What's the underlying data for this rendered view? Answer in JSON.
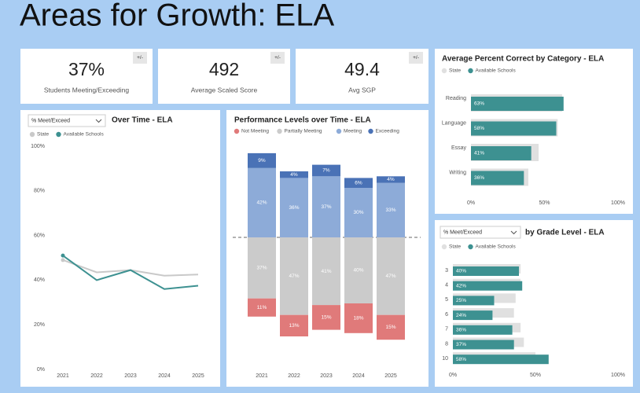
{
  "title": "Areas for Growth: ELA",
  "kpis": [
    {
      "value": "37%",
      "label": "Students Meeting/Exceeding",
      "button": "+/-"
    },
    {
      "value": "492",
      "label": "Average Scaled Score",
      "button": "+/-"
    },
    {
      "value": "49.4",
      "label": "Avg SGP",
      "button": "+/-"
    }
  ],
  "chart_data": [
    {
      "type": "line",
      "title": "Over Time - ELA",
      "dropdown": "% Meet/Exceed",
      "categories": [
        "2021",
        "2022",
        "2023",
        "2024",
        "2025"
      ],
      "series": [
        {
          "name": "State",
          "color": "#c9c9c9",
          "values": [
            49,
            43.5,
            44.5,
            42,
            42.5
          ]
        },
        {
          "name": "Available Schools",
          "color": "#3d9191",
          "values": [
            51,
            40,
            44.5,
            36,
            37.5
          ]
        }
      ],
      "ylim": [
        0,
        100
      ],
      "yticks": [
        {
          "value": 0,
          "label": "0%"
        },
        {
          "value": 20,
          "label": "20%"
        },
        {
          "value": 40,
          "label": "40%"
        },
        {
          "value": 60,
          "label": "60%"
        },
        {
          "value": 80,
          "label": "80%"
        },
        {
          "value": 100,
          "label": "100%"
        }
      ]
    },
    {
      "type": "diverging-bar",
      "title": "Performance Levels over Time - ELA",
      "categories": [
        "2021",
        "2022",
        "2023",
        "2024",
        "2025"
      ],
      "series": [
        {
          "name": "Not Meeting",
          "color": "#e07a7a",
          "values": [
            11,
            13,
            15,
            18,
            15
          ],
          "value_labels": [
            "11%",
            "13%",
            "15%",
            "18%",
            "15%"
          ]
        },
        {
          "name": "Partially Meeting",
          "color": "#cbcbcb",
          "values": [
            37,
            47,
            41,
            40,
            47
          ],
          "value_labels": [
            "37%",
            "47%",
            "41%",
            "40%",
            "47%"
          ]
        },
        {
          "name": "Meeting",
          "color": "#8dabd8",
          "values": [
            42,
            36,
            37,
            30,
            33
          ],
          "value_labels": [
            "42%",
            "36%",
            "37%",
            "30%",
            "33%"
          ]
        },
        {
          "name": "Exceeding",
          "color": "#4a72b6",
          "values": [
            9,
            4,
            7,
            6,
            4
          ],
          "value_labels": [
            "9%",
            "4%",
            "7%",
            "6%",
            "4%"
          ]
        }
      ]
    },
    {
      "type": "hbar",
      "title": "Average Percent Correct by Category - ELA",
      "categories": [
        "Reading",
        "Language",
        "Essay",
        "Writing"
      ],
      "series": [
        {
          "name": "State",
          "color": "#e0e0e0",
          "values": [
            62,
            59,
            46,
            39
          ]
        },
        {
          "name": "Available Schools",
          "color": "#3d9191",
          "values": [
            63,
            58,
            41,
            36
          ],
          "value_labels": [
            "63%",
            "58%",
            "41%",
            "36%"
          ]
        }
      ],
      "xlim": [
        0,
        100
      ],
      "xticks": [
        {
          "value": 0,
          "label": "0%"
        },
        {
          "value": 50,
          "label": "50%"
        },
        {
          "value": 100,
          "label": "100%"
        }
      ]
    },
    {
      "type": "hbar",
      "title": "by Grade Level - ELA",
      "dropdown": "% Meet/Exceed",
      "categories": [
        "3",
        "4",
        "5",
        "6",
        "7",
        "8",
        "10"
      ],
      "series": [
        {
          "name": "State",
          "color": "#e0e0e0",
          "values": [
            41,
            41,
            38,
            37,
            41,
            43,
            50
          ]
        },
        {
          "name": "Available Schools",
          "color": "#3d9191",
          "values": [
            40,
            42,
            25,
            24,
            36,
            37,
            58
          ],
          "value_labels": [
            "40%",
            "42%",
            "25%",
            "24%",
            "36%",
            "37%",
            "58%"
          ]
        }
      ],
      "xlim": [
        0,
        100
      ],
      "xticks": [
        {
          "value": 0,
          "label": "0%"
        },
        {
          "value": 50,
          "label": "50%"
        },
        {
          "value": 100,
          "label": "100%"
        }
      ]
    }
  ]
}
